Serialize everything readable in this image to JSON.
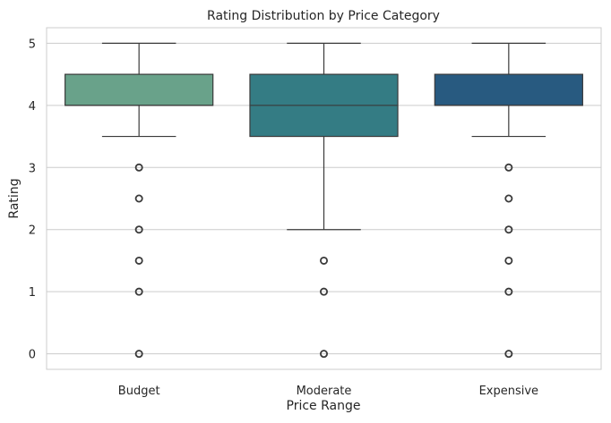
{
  "chart_data": {
    "type": "box",
    "title": "Rating Distribution by Price Category",
    "xlabel": "Price Range",
    "ylabel": "Rating",
    "categories": [
      "Budget",
      "Moderate",
      "Expensive"
    ],
    "ylim": [
      -0.25,
      5.25
    ],
    "yticks": [
      0,
      1,
      2,
      3,
      4,
      5
    ],
    "grid": "horizontal",
    "boxes": [
      {
        "category": "Budget",
        "color": "#69A28A",
        "whisker_low": 3.5,
        "q1": 4.0,
        "median": 4.0,
        "q3": 4.5,
        "whisker_high": 5.0,
        "outliers": [
          3.0,
          2.5,
          2.0,
          1.5,
          1.0,
          0.0
        ]
      },
      {
        "category": "Moderate",
        "color": "#347C84",
        "whisker_low": 2.0,
        "q1": 3.5,
        "median": 4.0,
        "q3": 4.5,
        "whisker_high": 5.0,
        "outliers": [
          1.5,
          1.0,
          0.0
        ]
      },
      {
        "category": "Expensive",
        "color": "#285A80",
        "whisker_low": 3.5,
        "q1": 4.0,
        "median": 4.0,
        "q3": 4.5,
        "whisker_high": 5.0,
        "outliers": [
          3.0,
          2.5,
          2.0,
          1.5,
          1.0,
          0.0
        ]
      }
    ]
  }
}
